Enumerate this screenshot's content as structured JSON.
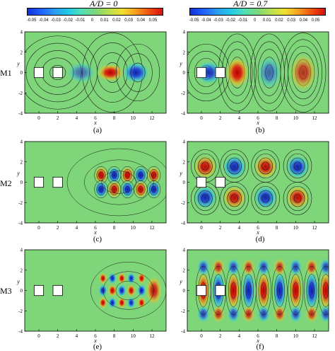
{
  "headers": {
    "left": "A/D = 0",
    "right": "A/D = 0.7"
  },
  "colorbar": {
    "ticks": [
      "-0.05",
      "-0.04",
      "-0.03",
      "-0.02",
      "-0.01",
      "0",
      "0.01",
      "0.02",
      "0.03",
      "0.04",
      "0.05"
    ],
    "colors": [
      "#1030d8",
      "#2060ff",
      "#2a9cf0",
      "#22c8e8",
      "#50e0b8",
      "#7ad77a",
      "#b8e050",
      "#f0e030",
      "#f8a020",
      "#f05010",
      "#d81010"
    ]
  },
  "rows": [
    "M1",
    "M2",
    "M3"
  ],
  "captions": [
    "(a)",
    "(b)",
    "(c)",
    "(d)",
    "(e)",
    "(f)"
  ],
  "axes": {
    "xticks": [
      "0",
      "2",
      "4",
      "6",
      "8",
      "10",
      "12"
    ],
    "yticks": [
      "4",
      "2",
      "0",
      "-2",
      "-4"
    ],
    "xlabel": "x",
    "ylabel": "y"
  },
  "colors": {
    "field": "#7fd67a",
    "positive": "#e02010",
    "negative": "#1f3fe0",
    "contour": "#1a1a1a"
  }
}
